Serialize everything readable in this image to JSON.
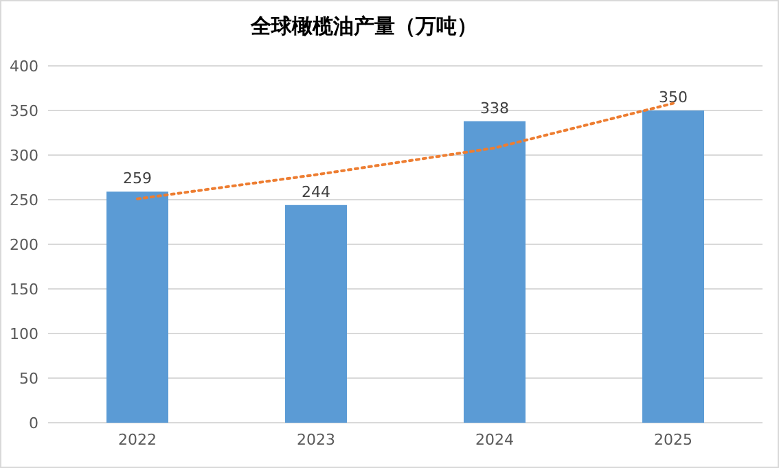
{
  "chart_data": {
    "type": "bar",
    "title": "全球橄榄油产量（万吨）",
    "categories": [
      "2022",
      "2023",
      "2024",
      "2025"
    ],
    "ylim": [
      0,
      400
    ],
    "yticks": [
      0,
      50,
      100,
      150,
      200,
      250,
      300,
      350,
      400
    ],
    "grid": "y",
    "series": [
      {
        "color": "#5b9bd5",
        "values": [
          259,
          244,
          338,
          350
        ],
        "value_labels": [
          "259",
          "244",
          "338",
          "350"
        ]
      },
      {
        "type": "line",
        "color": "#ed7d31",
        "line_style": "dotted",
        "marker": "none",
        "values": [
          251,
          278,
          308,
          358
        ]
      }
    ]
  }
}
